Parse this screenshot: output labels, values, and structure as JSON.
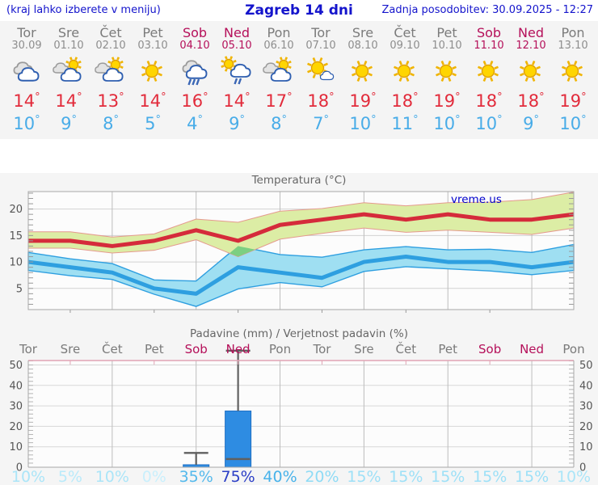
{
  "header": {
    "left_note": "(kraj lahko izberete v meniju)",
    "title": "Zagreb 14 dni",
    "updated": "Zadnja posodobitev: 30.09.2025 - 12:27"
  },
  "colors": {
    "accent_blue": "#1414cc",
    "weekend": "#b5105a",
    "weekday": "#7b7b7b",
    "temp_max": "#e22b3b",
    "temp_min": "#48ace8",
    "strip_bg": "#f4f4f4",
    "charts_bg": "#f5f5f5",
    "plot_bg": "#fcfcfc"
  },
  "days": [
    {
      "name": "Tor",
      "date": "30.09",
      "weekend": false,
      "icon": "cloudy",
      "tmax": 14,
      "tmin": 10
    },
    {
      "name": "Sre",
      "date": "01.10",
      "weekend": false,
      "icon": "partly-cloudy",
      "tmax": 14,
      "tmin": 9
    },
    {
      "name": "Čet",
      "date": "02.10",
      "weekend": false,
      "icon": "partly-cloudy",
      "tmax": 13,
      "tmin": 8
    },
    {
      "name": "Pet",
      "date": "03.10",
      "weekend": false,
      "icon": "sunny",
      "tmax": 14,
      "tmin": 5
    },
    {
      "name": "Sob",
      "date": "04.10",
      "weekend": true,
      "icon": "rain",
      "tmax": 16,
      "tmin": 4
    },
    {
      "name": "Ned",
      "date": "05.10",
      "weekend": true,
      "icon": "sun-rain",
      "tmax": 14,
      "tmin": 9
    },
    {
      "name": "Pon",
      "date": "06.10",
      "weekend": false,
      "icon": "partly-cloudy",
      "tmax": 17,
      "tmin": 8
    },
    {
      "name": "Tor",
      "date": "07.10",
      "weekend": false,
      "icon": "mostly-sunny",
      "tmax": 18,
      "tmin": 7
    },
    {
      "name": "Sre",
      "date": "08.10",
      "weekend": false,
      "icon": "sunny",
      "tmax": 19,
      "tmin": 10
    },
    {
      "name": "Čet",
      "date": "09.10",
      "weekend": false,
      "icon": "sunny",
      "tmax": 18,
      "tmin": 11
    },
    {
      "name": "Pet",
      "date": "10.10",
      "weekend": false,
      "icon": "sunny",
      "tmax": 19,
      "tmin": 10
    },
    {
      "name": "Sob",
      "date": "11.10",
      "weekend": true,
      "icon": "sunny",
      "tmax": 18,
      "tmin": 10
    },
    {
      "name": "Ned",
      "date": "12.10",
      "weekend": true,
      "icon": "sunny",
      "tmax": 18,
      "tmin": 9
    },
    {
      "name": "Pon",
      "date": "13.10",
      "weekend": false,
      "icon": "sunny",
      "tmax": 19,
      "tmin": 10
    }
  ],
  "chart_data": [
    {
      "type": "line",
      "title": "Temperatura (°C)",
      "watermark": "vreme.us",
      "x_labels": [
        "Tor",
        "Sre",
        "Čet",
        "Pet",
        "Sob",
        "Ned",
        "Pon",
        "Tor",
        "Sre",
        "Čet",
        "Pet",
        "Sob",
        "Ned",
        "Pon"
      ],
      "ylim": [
        1,
        23.3
      ],
      "yticks": [
        5,
        10,
        15,
        20
      ],
      "grid": true,
      "series": [
        {
          "name": "temp-max",
          "color": "#d52b3b",
          "values": [
            14,
            14,
            13,
            14,
            16,
            14,
            17,
            18,
            19,
            18,
            19,
            18,
            18,
            19
          ]
        },
        {
          "name": "temp-min",
          "color": "#2e9fe0",
          "values": [
            10,
            9,
            8,
            5,
            4,
            9,
            8,
            7,
            10,
            11,
            10,
            10,
            9,
            10
          ]
        },
        {
          "name": "temp-max-range-upper",
          "color": "#dceda5",
          "values": [
            15.7,
            15.7,
            14.7,
            15.3,
            18.1,
            17.5,
            19.6,
            20.1,
            21.2,
            20.6,
            21.2,
            21.3,
            21.8,
            23.2
          ]
        },
        {
          "name": "temp-max-range-lower",
          "color": "#dceda5",
          "values": [
            12.6,
            12.6,
            11.7,
            12.2,
            14.2,
            11.0,
            14.3,
            15.4,
            16.4,
            15.6,
            16.0,
            15.6,
            15.2,
            16.4
          ]
        },
        {
          "name": "temp-min-range-upper",
          "color": "#9fdff2",
          "values": [
            11.8,
            10.6,
            9.7,
            6.6,
            6.4,
            13.0,
            11.4,
            10.9,
            12.3,
            12.9,
            12.3,
            12.4,
            11.8,
            13.3
          ]
        },
        {
          "name": "temp-min-range-lower",
          "color": "#9fdff2",
          "values": [
            8.4,
            7.4,
            6.7,
            3.9,
            1.6,
            4.9,
            6.1,
            5.3,
            8.2,
            9.1,
            8.7,
            8.3,
            7.6,
            8.4
          ]
        }
      ],
      "band_edge_colors": {
        "max": "#e59a8e",
        "min": "#2e9fe0"
      },
      "overlap_color": "#7ccf82"
    },
    {
      "type": "bar",
      "title": "Padavine (mm) / Verjetnost padavin (%)",
      "x_labels": [
        "Tor",
        "Sre",
        "Čet",
        "Pet",
        "Sob",
        "Ned",
        "Pon",
        "Tor",
        "Sre",
        "Čet",
        "Pet",
        "Sob",
        "Ned",
        "Pon"
      ],
      "weekend_flags": [
        false,
        false,
        false,
        false,
        true,
        true,
        false,
        false,
        false,
        false,
        false,
        true,
        true,
        false
      ],
      "ylim": [
        0,
        52
      ],
      "yticks": [
        0,
        10,
        20,
        30,
        40,
        50
      ],
      "grid": true,
      "bar_color": "#2e8ce2",
      "whisker_color": "#606060",
      "bars": [
        {
          "day_index": 4,
          "amount": 1.2,
          "range_low": 0.5,
          "range_high": 7,
          "cap_low": false,
          "cap_high": true
        },
        {
          "day_index": 5,
          "amount": 27.5,
          "range_low": 4,
          "range_high": 57,
          "cap_low": true,
          "cap_high": true
        }
      ],
      "probabilities": [
        {
          "label": "10%",
          "color": "#abe5f8"
        },
        {
          "label": "5%",
          "color": "#b9eafa"
        },
        {
          "label": "10%",
          "color": "#abe5f8"
        },
        {
          "label": "0%",
          "color": "#c9effc"
        },
        {
          "label": "35%",
          "color": "#54b9ec"
        },
        {
          "label": "75%",
          "color": "#2b3ec6"
        },
        {
          "label": "40%",
          "color": "#47b2ea"
        },
        {
          "label": "20%",
          "color": "#8edbf5"
        },
        {
          "label": "15%",
          "color": "#9de0f7"
        },
        {
          "label": "15%",
          "color": "#9de0f7"
        },
        {
          "label": "15%",
          "color": "#9de0f7"
        },
        {
          "label": "15%",
          "color": "#9de0f7"
        },
        {
          "label": "15%",
          "color": "#9de0f7"
        },
        {
          "label": "10%",
          "color": "#abe5f8"
        }
      ]
    }
  ]
}
